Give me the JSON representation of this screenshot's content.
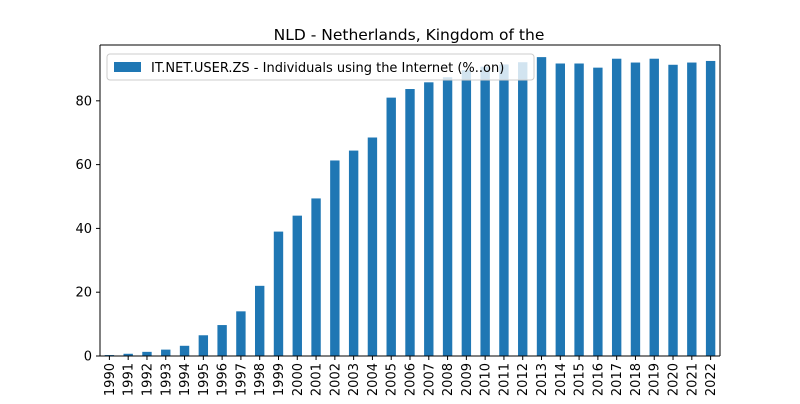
{
  "chart_data": {
    "type": "bar",
    "title": "NLD - Netherlands, Kingdom of the",
    "xlabel": "",
    "ylabel": "",
    "legend_position": "top-left",
    "grid": false,
    "ylim": [
      0,
      97.5
    ],
    "yticks": [
      0,
      20,
      40,
      60,
      80
    ],
    "categories": [
      "1990",
      "1991",
      "1992",
      "1993",
      "1994",
      "1995",
      "1996",
      "1997",
      "1998",
      "1999",
      "2000",
      "2001",
      "2002",
      "2003",
      "2004",
      "2005",
      "2006",
      "2007",
      "2008",
      "2009",
      "2010",
      "2011",
      "2012",
      "2013",
      "2014",
      "2015",
      "2016",
      "2017",
      "2018",
      "2019",
      "2020",
      "2021",
      "2022"
    ],
    "series": [
      {
        "name": "IT.NET.USER.ZS - Individuals using the Internet (%..on)",
        "color": "#1f77b4",
        "values": [
          0.3,
          0.7,
          1.3,
          2.0,
          3.2,
          6.5,
          9.7,
          14.0,
          22.0,
          39.0,
          44.0,
          49.4,
          61.3,
          64.4,
          68.5,
          81.0,
          83.7,
          85.8,
          87.4,
          89.6,
          90.7,
          91.4,
          92.1,
          93.7,
          91.7,
          91.7,
          90.4,
          93.2,
          92.0,
          93.2,
          91.3,
          92.0,
          92.5
        ]
      }
    ]
  }
}
